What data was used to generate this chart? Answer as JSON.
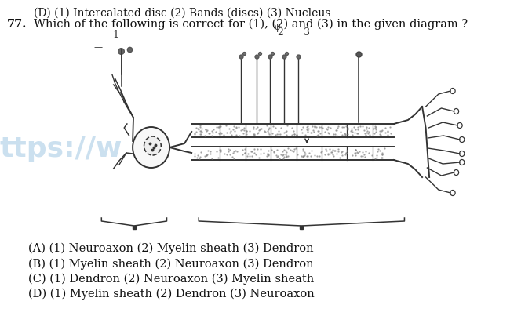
{
  "bg_color": "#ffffff",
  "top_text": "(D) (1) Intercalated disc (2) Bands (discs) (3) Nucleus",
  "question_num": "77.",
  "question_text": "Which of the following is correct for (1), (2) and (3) in the given diagram ?",
  "options": [
    "(A) (1) Neuroaxon (2) Myelin sheath (3) Dendron",
    "(B) (1) Myelin sheath (2) Neuroaxon (3) Dendron",
    "(C) (1) Dendron (2) Neuroaxon (3) Myelin sheath",
    "(D) (1) Myelin sheath (2) Dendron (3) Neuroaxon"
  ],
  "watermark": "ttps://w",
  "text_color": "#111111",
  "font_size_top": 10,
  "font_size_q": 10.5,
  "font_size_opt": 10.5
}
